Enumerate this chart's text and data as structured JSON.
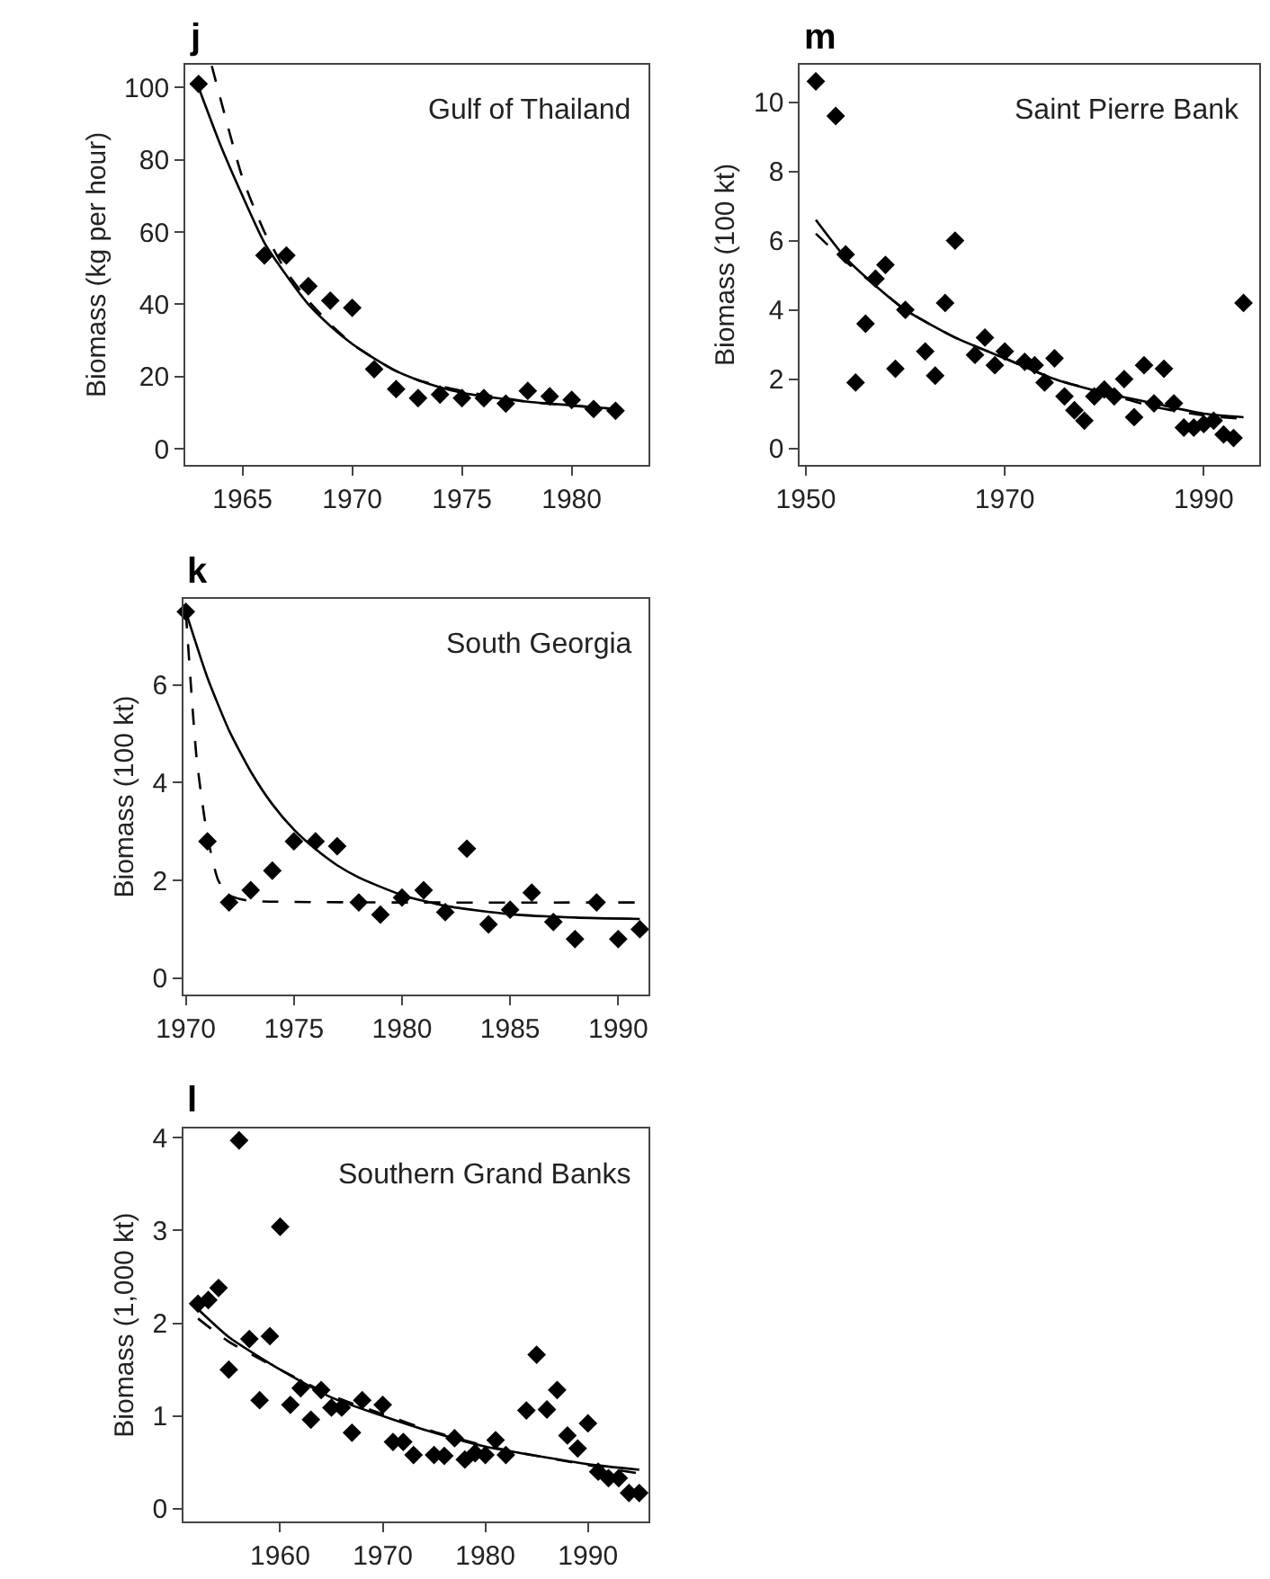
{
  "chart_data": [
    {
      "type": "scatter",
      "title": "j",
      "ylabel": "Biomass (kg per hour)",
      "annotations": [
        "Gulf of Thailand"
      ],
      "xlim": [
        1962.4,
        1983.5
      ],
      "ylim": [
        -4.5,
        106.4
      ],
      "xticks": [
        1965,
        1970,
        1975,
        1980
      ],
      "yticks": [
        0,
        20,
        40,
        60,
        80,
        100
      ],
      "series": [
        {
          "marker": "diamond",
          "color": "#000000",
          "x": [
            1963,
            1966,
            1967,
            1968,
            1969,
            1970,
            1971,
            1972,
            1973,
            1974,
            1975,
            1976,
            1977,
            1978,
            1979,
            1980,
            1981,
            1982
          ],
          "values": [
            101,
            53.5,
            53.5,
            45,
            41,
            39,
            22,
            16.5,
            14,
            15,
            14,
            14,
            12.5,
            16,
            14.5,
            13.5,
            11,
            10.5
          ]
        },
        {
          "type": "line",
          "line_style": "solid",
          "color": "#000000",
          "x": [
            1963,
            1964,
            1965,
            1966,
            1967,
            1968,
            1969,
            1970,
            1971,
            1972,
            1973,
            1974,
            1975,
            1976,
            1978,
            1980,
            1982
          ],
          "values": [
            100,
            84,
            70,
            57,
            48,
            40,
            34,
            29,
            25,
            21.5,
            19,
            17,
            15.5,
            14.5,
            13,
            12,
            11
          ]
        },
        {
          "type": "line",
          "line_style": "dashed",
          "color": "#000000",
          "x": [
            1963.6,
            1965,
            1966,
            1967,
            1968,
            1969,
            1970,
            1971,
            1972,
            1973,
            1975,
            1978,
            1982
          ],
          "values": [
            106,
            75,
            60,
            49,
            41,
            34.5,
            29,
            25,
            21.5,
            19,
            16,
            13,
            11
          ]
        }
      ]
    },
    {
      "type": "scatter",
      "title": "m",
      "ylabel": "Biomass (100 kt)",
      "annotations": [
        "Saint Pierre Bank"
      ],
      "xlim": [
        1949.4,
        1995.6
      ],
      "ylim": [
        -0.48,
        11.09
      ],
      "xticks": [
        1950,
        1970,
        1990
      ],
      "yticks": [
        0,
        2,
        4,
        6,
        8,
        10
      ],
      "series": [
        {
          "marker": "diamond",
          "color": "#000000",
          "x": [
            1951,
            1953,
            1954,
            1955,
            1956,
            1957,
            1958,
            1959,
            1960,
            1962,
            1963,
            1964,
            1965,
            1967,
            1968,
            1969,
            1970,
            1972,
            1973,
            1974,
            1975,
            1976,
            1977,
            1978,
            1979,
            1980,
            1981,
            1982,
            1983,
            1984,
            1985,
            1986,
            1987,
            1988,
            1989,
            1990,
            1991,
            1992,
            1993,
            1994
          ],
          "values": [
            10.6,
            9.6,
            5.6,
            1.9,
            3.6,
            4.9,
            5.3,
            2.3,
            4.0,
            2.8,
            2.1,
            4.2,
            6.0,
            2.7,
            3.2,
            2.4,
            2.8,
            2.5,
            2.4,
            1.9,
            2.6,
            1.5,
            1.1,
            0.8,
            1.5,
            1.7,
            1.5,
            2.0,
            0.9,
            2.4,
            1.3,
            2.3,
            1.3,
            0.6,
            0.6,
            0.7,
            0.8,
            0.4,
            0.3,
            4.2
          ]
        },
        {
          "type": "line",
          "line_style": "solid",
          "color": "#000000",
          "x": [
            1951,
            1954,
            1957,
            1960,
            1965,
            1970,
            1975,
            1980,
            1985,
            1990,
            1994
          ],
          "values": [
            6.6,
            5.5,
            4.7,
            4.0,
            3.2,
            2.6,
            2.0,
            1.6,
            1.3,
            1.0,
            0.9
          ]
        },
        {
          "type": "line",
          "line_style": "dashed",
          "color": "#000000",
          "x": [
            1951,
            1954,
            1957,
            1960,
            1965,
            1970,
            1975,
            1980,
            1985,
            1990,
            1994
          ],
          "values": [
            6.2,
            5.4,
            4.7,
            4.0,
            3.2,
            2.6,
            2.0,
            1.6,
            1.2,
            0.95,
            0.85
          ]
        }
      ]
    },
    {
      "type": "scatter",
      "title": "k",
      "ylabel": "Biomass (100 kt)",
      "annotations": [
        "South Georgia"
      ],
      "xlim": [
        1969.9,
        1991.4
      ],
      "ylim": [
        -0.33,
        7.76
      ],
      "xticks": [
        1970,
        1975,
        1980,
        1985,
        1990
      ],
      "yticks": [
        0,
        2,
        4,
        6
      ],
      "series": [
        {
          "marker": "diamond",
          "color": "#000000",
          "x": [
            1970,
            1971,
            1972,
            1973,
            1974,
            1975,
            1976,
            1977,
            1978,
            1979,
            1980,
            1981,
            1982,
            1983,
            1984,
            1985,
            1986,
            1987,
            1988,
            1989,
            1990,
            1991
          ],
          "values": [
            7.5,
            2.8,
            1.55,
            1.8,
            2.2,
            2.8,
            2.8,
            2.7,
            1.55,
            1.3,
            1.65,
            1.8,
            1.35,
            2.65,
            1.1,
            1.4,
            1.75,
            1.15,
            0.8,
            1.55,
            0.8,
            1.0
          ]
        },
        {
          "type": "line",
          "line_style": "solid",
          "color": "#000000",
          "x": [
            1970,
            1971,
            1972,
            1973,
            1974,
            1975,
            1976,
            1977,
            1978,
            1980,
            1982,
            1985,
            1988,
            1991
          ],
          "values": [
            7.5,
            6.15,
            5.07,
            4.23,
            3.56,
            3.04,
            2.64,
            2.31,
            2.06,
            1.7,
            1.48,
            1.31,
            1.24,
            1.21
          ]
        },
        {
          "type": "line",
          "line_style": "dashed",
          "color": "#000000",
          "x": [
            1970,
            1970.5,
            1971,
            1971.5,
            1972,
            1972.5,
            1973,
            1991
          ],
          "values": [
            7.5,
            4.5,
            2.9,
            2.0,
            1.7,
            1.62,
            1.58,
            1.55
          ]
        }
      ]
    },
    {
      "type": "scatter",
      "title": "l",
      "ylabel": "Biomass (1,000 kt)",
      "annotations": [
        "Southern Grand Banks"
      ],
      "xlim": [
        1950.6,
        1995.9
      ],
      "ylim": [
        -0.14,
        4.1
      ],
      "xticks": [
        1960,
        1970,
        1980,
        1990
      ],
      "yticks": [
        0,
        1,
        2,
        3,
        4
      ],
      "series": [
        {
          "marker": "diamond",
          "color": "#000000",
          "x": [
            1952,
            1953,
            1954,
            1955,
            1956,
            1957,
            1958,
            1959,
            1960,
            1961,
            1962,
            1963,
            1964,
            1965,
            1966,
            1967,
            1968,
            1970,
            1971,
            1972,
            1973,
            1975,
            1976,
            1977,
            1978,
            1979,
            1980,
            1981,
            1982,
            1984,
            1985,
            1986,
            1987,
            1988,
            1989,
            1990,
            1991,
            1992,
            1993,
            1994,
            1995
          ],
          "values": [
            2.21,
            2.25,
            2.38,
            1.5,
            3.97,
            1.83,
            1.17,
            1.86,
            3.04,
            1.12,
            1.3,
            0.96,
            1.28,
            1.09,
            1.09,
            0.82,
            1.17,
            1.12,
            0.72,
            0.72,
            0.58,
            0.58,
            0.57,
            0.76,
            0.53,
            0.6,
            0.58,
            0.74,
            0.58,
            1.06,
            1.66,
            1.07,
            1.28,
            0.79,
            0.65,
            0.92,
            0.4,
            0.33,
            0.33,
            0.17,
            0.17
          ]
        },
        {
          "type": "line",
          "line_style": "solid",
          "color": "#000000",
          "x": [
            1952,
            1955,
            1960,
            1965,
            1970,
            1975,
            1980,
            1985,
            1990,
            1995
          ],
          "values": [
            2.15,
            1.85,
            1.5,
            1.2,
            1.0,
            0.82,
            0.67,
            0.57,
            0.48,
            0.42
          ]
        },
        {
          "type": "line",
          "line_style": "dashed",
          "color": "#000000",
          "x": [
            1952,
            1955,
            1960,
            1965,
            1970,
            1975,
            1980,
            1985,
            1990,
            1995
          ],
          "values": [
            2.05,
            1.8,
            1.5,
            1.22,
            1.02,
            0.83,
            0.68,
            0.57,
            0.47,
            0.38
          ]
        }
      ]
    }
  ]
}
